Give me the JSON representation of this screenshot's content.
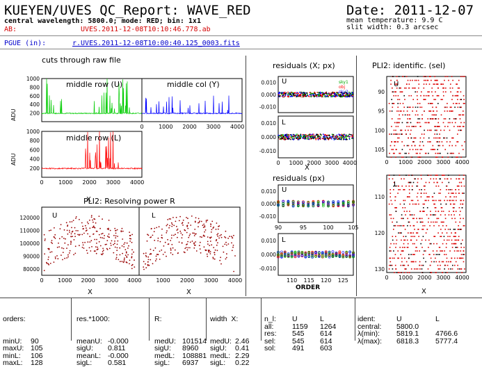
{
  "header": {
    "title": "KUEYEN/UVES QC_Report: WAVE_RED",
    "date": "Date: 2011-12-07",
    "subtitle": "central wavelength: 5800.0; mode: RED; bin: 1x1",
    "ab_label": "AB:",
    "ab_file": "UVES.2011-12-08T10:10:46.778.ab",
    "mean_temp": "mean temperature: 9.9 C",
    "slit_width": "slit width: 0.3 arcsec",
    "pgue_label": "PGUE (in):",
    "pgue_file": "r.UVES.2011-12-08T10:00:40.125_0003.fits"
  },
  "panels": {
    "raw_title": "cuts through raw file",
    "raw_mid_row_u": "middle row (U)",
    "raw_mid_col_y": "middle col (Y)",
    "raw_mid_row_l": "middle row (L)",
    "adu": "ADU",
    "resid_title": "residuals (X; px)",
    "resid_ord_title": "residuals (px)",
    "ident_title": "PLI2: identific. (sel)",
    "rp_title": "PLI2: Resolving power R",
    "x_label": "X",
    "order_label": "ORDER",
    "u": "U",
    "l": "L",
    "legend": [
      "sky1",
      "obj",
      "sky2"
    ]
  },
  "chart_data": [
    {
      "type": "line",
      "name": "raw middle row U",
      "xlim": [
        0,
        2100
      ],
      "ylim": [
        0,
        1000
      ],
      "yticks": [
        200,
        400,
        600,
        800,
        1000
      ],
      "color": "#00cc00"
    },
    {
      "type": "line",
      "name": "raw middle col Y",
      "xlim": [
        0,
        4200
      ],
      "ylim": [
        0,
        1000
      ],
      "xticks": [
        0,
        1000,
        2000,
        3000,
        4000
      ],
      "color": "#0000ff"
    },
    {
      "type": "line",
      "name": "raw middle row L",
      "xlim": [
        0,
        4200
      ],
      "ylim": [
        0,
        1000
      ],
      "xticks": [
        0,
        1000,
        2000,
        3000,
        4000
      ],
      "yticks": [
        200,
        400,
        600,
        800,
        1000
      ],
      "color": "#ff0000"
    },
    {
      "type": "scatter",
      "name": "residuals X U",
      "xlim": [
        0,
        4200
      ],
      "ylim": [
        -0.015,
        0.015
      ],
      "yticks": [
        -0.01,
        0.0,
        0.01
      ]
    },
    {
      "type": "scatter",
      "name": "residuals X L",
      "xlim": [
        0,
        4200
      ],
      "ylim": [
        -0.015,
        0.015
      ],
      "xticks": [
        0,
        1000,
        2000,
        3000,
        4000
      ],
      "yticks": [
        -0.01,
        0.0,
        0.01
      ]
    },
    {
      "type": "scatter",
      "name": "residuals order U",
      "xlim": [
        90,
        105
      ],
      "ylim": [
        -0.015,
        0.015
      ],
      "xticks": [
        90,
        95,
        100,
        105
      ],
      "yticks": [
        -0.01,
        0.0,
        0.01
      ]
    },
    {
      "type": "scatter",
      "name": "residuals order L",
      "xlim": [
        106,
        128
      ],
      "ylim": [
        -0.015,
        0.015
      ],
      "xticks": [
        110,
        115,
        120,
        125
      ],
      "yticks": [
        -0.01,
        0.0,
        0.01
      ]
    },
    {
      "type": "scatter",
      "name": "identification U",
      "xlim": [
        0,
        4200
      ],
      "ylim": [
        86,
        107
      ],
      "xticks": [
        0,
        1000,
        2000,
        3000,
        4000
      ],
      "yticks": [
        90,
        95,
        100,
        105
      ]
    },
    {
      "type": "scatter",
      "name": "identification L",
      "xlim": [
        0,
        4200
      ],
      "ylim": [
        104,
        131
      ],
      "xticks": [
        0,
        1000,
        2000,
        3000,
        4000
      ],
      "yticks": [
        110,
        120,
        130
      ]
    },
    {
      "type": "scatter",
      "name": "resolving power U",
      "xlim": [
        0,
        4200
      ],
      "ylim": [
        75000,
        128000
      ],
      "xticks": [
        0,
        1000,
        2000,
        3000,
        4000
      ],
      "yticks": [
        80000,
        90000,
        100000,
        110000,
        120000
      ]
    },
    {
      "type": "scatter",
      "name": "resolving power L",
      "xlim": [
        0,
        4200
      ],
      "ylim": [
        75000,
        128000
      ],
      "xticks": [
        1000,
        2000,
        3000,
        4000
      ]
    }
  ],
  "tables": {
    "orders": {
      "head": "orders:",
      "rows": [
        [
          "minU:",
          "90"
        ],
        [
          "maxU:",
          "105"
        ],
        [
          "minL:",
          "106"
        ],
        [
          "maxL:",
          "128"
        ]
      ]
    },
    "res": {
      "head": "res.*1000:",
      "rows": [
        [
          "meanU:",
          "-0.000"
        ],
        [
          "sigU:",
          "0.811"
        ],
        [
          "meanL:",
          "-0.000"
        ],
        [
          "sigL:",
          "0.581"
        ]
      ]
    },
    "r": {
      "head": "R:",
      "rows": [
        [
          "medU:",
          "101514"
        ],
        [
          "sigU:",
          "8960"
        ],
        [
          "medL:",
          "108881"
        ],
        [
          "sigL:",
          "6937"
        ]
      ]
    },
    "width": {
      "head": "width  X:",
      "rows": [
        [
          "medU:",
          "2.46"
        ],
        [
          "sigU:",
          "0.41"
        ],
        [
          "medL:",
          "2.29"
        ],
        [
          "sigL:",
          "0.22"
        ]
      ]
    },
    "nl": {
      "head": [
        "n_l:",
        "U",
        "L"
      ],
      "rows": [
        [
          "all:",
          "1159",
          "1264"
        ],
        [
          "res:",
          "545",
          "614"
        ],
        [
          "sel:",
          "545",
          "614"
        ],
        [
          "sol:",
          "491",
          "603"
        ]
      ]
    },
    "ident": {
      "head": [
        "ident:",
        "U",
        "L"
      ],
      "rows": [
        [
          "central:",
          "5800.0",
          ""
        ],
        [
          "λ(min):",
          "5819.1",
          "4766.6"
        ],
        [
          "λ(max):",
          "6818.3",
          "5777.4"
        ]
      ]
    }
  }
}
